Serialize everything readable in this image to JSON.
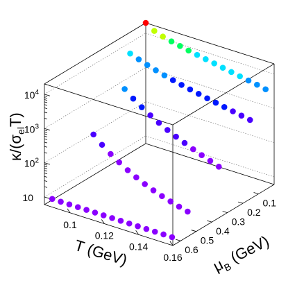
{
  "chart_data": {
    "type": "scatter",
    "zlabel": {
      "kappa": "κ/(σ",
      "sub": "el",
      "tail": "T)"
    },
    "xlabel": "T (GeV)",
    "ylabel": {
      "mu": "μ",
      "sub": "B",
      "tail": " (GeV)"
    },
    "z_scale": "log",
    "x_ticks": [
      "0.1",
      "0.12",
      "0.14",
      "0.16"
    ],
    "y_ticks": [
      "0.1",
      "0.2",
      "0.3",
      "0.4",
      "0.5",
      "0.6"
    ],
    "z_ticks": [
      {
        "base": "10",
        "exp": ""
      },
      {
        "base": "10",
        "exp": "2"
      },
      {
        "base": "10",
        "exp": "3"
      },
      {
        "base": "10",
        "exp": "4"
      }
    ],
    "xlim": [
      0.085,
      0.16
    ],
    "ylim": [
      0.0,
      0.65
    ],
    "zlim": [
      6,
      20000
    ],
    "series": [
      {
        "mu_B": 0.0,
        "T": [
          0.085,
          0.09,
          0.095,
          0.1,
          0.105,
          0.11,
          0.115,
          0.12,
          0.125,
          0.13,
          0.135,
          0.14,
          0.145,
          0.15,
          0.155
        ],
        "values": [
          20000,
          14000,
          11500,
          10000,
          8800,
          7800,
          7000,
          6300,
          5700,
          5100,
          4600,
          4150,
          3750,
          3400,
          3000
        ]
      },
      {
        "mu_B": 0.1,
        "T": [
          0.085,
          0.09,
          0.095,
          0.1,
          0.105,
          0.11,
          0.115,
          0.12,
          0.125,
          0.13,
          0.135,
          0.14,
          0.145,
          0.15,
          0.155
        ],
        "values": [
          4800,
          3900,
          3200,
          2700,
          2300,
          2000,
          1750,
          1550,
          1380,
          1230,
          1100,
          990,
          890,
          800,
          720
        ]
      },
      {
        "mu_B": 0.3,
        "T": [
          0.1,
          0.105,
          0.11,
          0.115,
          0.12,
          0.125,
          0.13,
          0.135,
          0.14,
          0.145,
          0.15,
          0.155
        ],
        "values": [
          2700,
          1700,
          1150,
          800,
          580,
          430,
          330,
          260,
          205,
          165,
          135,
          110
        ]
      },
      {
        "mu_B": 0.5,
        "T": [
          0.1,
          0.105,
          0.11,
          0.115,
          0.12,
          0.125,
          0.13,
          0.135,
          0.14,
          0.145,
          0.15,
          0.155
        ],
        "values": [
          450,
          270,
          175,
          120,
          85,
          63,
          48,
          38,
          31,
          26,
          22,
          19
        ]
      },
      {
        "mu_B": 0.6,
        "T": [
          0.085,
          0.09,
          0.095,
          0.1,
          0.105,
          0.11,
          0.115,
          0.12,
          0.125,
          0.13,
          0.135,
          0.14,
          0.145,
          0.15,
          0.155
        ],
        "values": [
          6.4,
          6.4,
          6.4,
          6.4,
          6.4,
          6.4,
          6.4,
          6.4,
          6.4,
          6.4,
          6.4,
          6.4,
          6.4,
          6.4,
          6.4
        ]
      }
    ],
    "color_map": [
      "#8a00ff",
      "#4a00ff",
      "#0018ff",
      "#0090ff",
      "#00e0ff",
      "#00ff60",
      "#c0ff00",
      "#ff0000"
    ],
    "grid": true,
    "legend": "none"
  }
}
